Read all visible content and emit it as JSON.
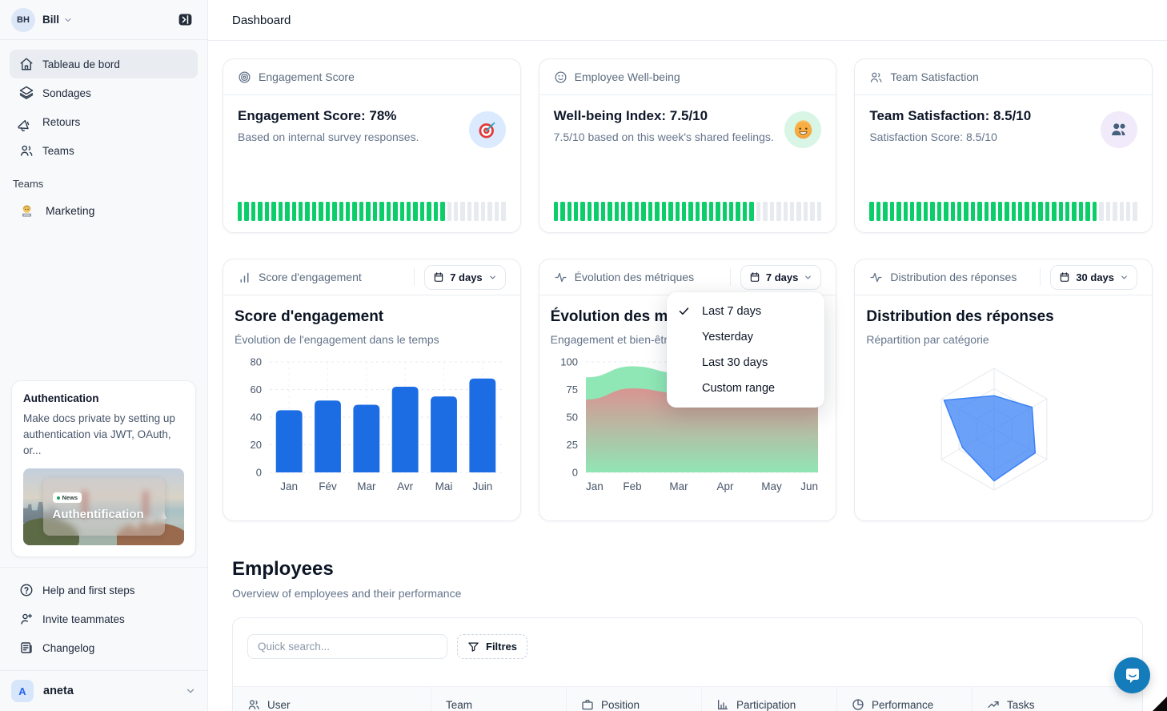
{
  "app": {
    "page_title": "Dashboard"
  },
  "sidebar": {
    "user": {
      "initials": "BH",
      "name": "Bill"
    },
    "nav": [
      {
        "label": "Tableau de bord",
        "icon": "home-icon",
        "active": true
      },
      {
        "label": "Sondages",
        "icon": "layers-icon",
        "active": false
      },
      {
        "label": "Retours",
        "icon": "megaphone-icon",
        "active": false
      },
      {
        "label": "Teams",
        "icon": "users-icon",
        "active": false
      }
    ],
    "teams_section": {
      "label": "Teams",
      "items": [
        {
          "label": "Marketing",
          "icon": "technologist-emoji"
        }
      ]
    },
    "promo_card": {
      "title": "Authentication",
      "description": "Make docs private by setting up authentication via JWT, OAuth, or...",
      "image_badge": "News",
      "image_title": "Authentification"
    },
    "footer_nav": [
      {
        "label": "Help and first steps",
        "icon": "help-circle-icon"
      },
      {
        "label": "Invite teammates",
        "icon": "user-plus-icon"
      },
      {
        "label": "Changelog",
        "icon": "changelog-icon"
      }
    ],
    "workspace": {
      "initial": "A",
      "name": "aneta"
    }
  },
  "stat_cards": [
    {
      "header": "Engagement Score",
      "title": "Engagement Score: 78%",
      "subtitle": "Based on internal survey responses.",
      "emoji": "target-emoji",
      "emoji_bg": "#dbeafe",
      "progress_percent": 78
    },
    {
      "header": "Employee Well-being",
      "title": "Well-being Index: 7.5/10",
      "subtitle": "7.5/10 based on this week's shared feelings.",
      "emoji": "smiling-face-emoji",
      "emoji_bg": "#d9f5e5",
      "progress_percent": 75
    },
    {
      "header": "Team Satisfaction",
      "title": "Team Satisfaction: 8.5/10",
      "subtitle": "Satisfaction Score: 8.5/10",
      "emoji": "busts-people-emoji",
      "emoji_bg": "#f1eafb",
      "progress_percent": 85
    }
  ],
  "chart_cards": [
    {
      "header": "Score d'engagement",
      "range_label": "7 days"
    },
    {
      "header": "Évolution des métriques",
      "range_label": "7 days"
    },
    {
      "header": "Distribution des réponses",
      "range_label": "30 days"
    }
  ],
  "chart_data": [
    {
      "type": "bar",
      "title": "Score d'engagement",
      "subtitle": "Évolution de l'engagement dans le temps",
      "categories": [
        "Jan",
        "Fév",
        "Mar",
        "Avr",
        "Mai",
        "Juin"
      ],
      "values": [
        45,
        52,
        49,
        62,
        55,
        68
      ],
      "ylim": [
        0,
        80
      ],
      "yticks": [
        0,
        20,
        40,
        60,
        80
      ],
      "bar_color": "#1c6de4",
      "grid": true
    },
    {
      "type": "area",
      "title": "Évolution des métriques",
      "subtitle": "Engagement et bien-être",
      "categories": [
        "Jan",
        "Feb",
        "Mar",
        "Apr",
        "May",
        "Jun"
      ],
      "series": [
        {
          "name": "bien-être",
          "values": [
            86,
            96,
            90,
            67,
            72,
            78
          ],
          "color": "#8fe7b6"
        },
        {
          "name": "engagement",
          "values": [
            66,
            76,
            72,
            62,
            66,
            70
          ],
          "color": "#dd9090"
        }
      ],
      "ylim": [
        0,
        100
      ],
      "yticks": [
        0,
        25,
        50,
        75,
        100
      ],
      "grid": true
    },
    {
      "type": "radar",
      "title": "Distribution des réponses",
      "subtitle": "Répartition par catégorie",
      "axes_count": 6,
      "values_fraction": [
        0.55,
        0.72,
        0.78,
        0.85,
        0.6,
        0.95
      ],
      "fill_color": "#3b82f6",
      "rings": 3
    }
  ],
  "dropdown_menu": {
    "items": [
      "Last 7 days",
      "Yesterday",
      "Last 30 days",
      "Custom range"
    ],
    "selected_index": 0
  },
  "employees": {
    "title": "Employees",
    "subtitle": "Overview of employees and their performance",
    "search_placeholder": "Quick search...",
    "filter_label": "Filtres",
    "columns": [
      {
        "label": "User",
        "icon": "users-icon"
      },
      {
        "label": "Team",
        "icon": ""
      },
      {
        "label": "Position",
        "icon": "briefcase-icon"
      },
      {
        "label": "Participation",
        "icon": "bar-chart-icon"
      },
      {
        "label": "Performance",
        "icon": "pie-chart-icon"
      },
      {
        "label": "Tasks",
        "icon": "trending-up-icon"
      }
    ]
  },
  "colors": {
    "progress_green": "#0bce6b",
    "progress_gray": "#e7eaee",
    "accent_blue": "#1c6de4",
    "radar_blue": "#3b82f6",
    "chat_bubble": "#147cba"
  }
}
